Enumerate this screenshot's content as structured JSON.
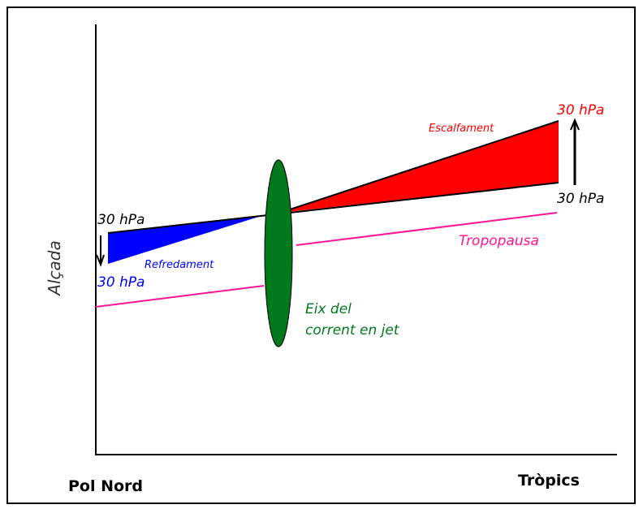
{
  "axes": {
    "y_label": "Alçada",
    "x_start": "Pol Nord",
    "x_end": "Tròpics"
  },
  "labels": {
    "cold_top": "30 hPa",
    "cold_bottom": "30 hPa",
    "cooling": "Refredament",
    "warming": "Escalfament",
    "warm_top": "30 hPa",
    "warm_bottom": "30 hPa",
    "tropopause": "Tropopausa",
    "jet_axis_line1": "Eix del",
    "jet_axis_line2": "corrent en jet"
  }
}
